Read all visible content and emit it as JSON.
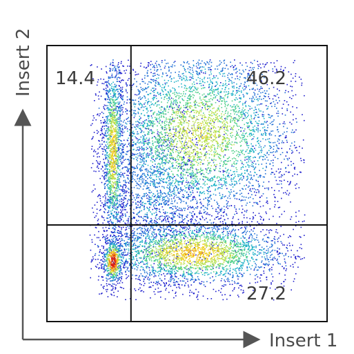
{
  "chart_data": {
    "type": "scatter",
    "title": "",
    "xlabel": "Insert 1",
    "ylabel": "Insert 2",
    "xlim": [
      0,
      100
    ],
    "ylim": [
      0,
      100
    ],
    "grid": false,
    "gates": {
      "x": 30,
      "y": 35
    },
    "quadrants": [
      {
        "name": "upper-left",
        "value": "14.4"
      },
      {
        "name": "upper-right",
        "value": "46.2"
      },
      {
        "name": "lower-right",
        "value": "27.2"
      }
    ],
    "colormap": [
      "#1a1acc",
      "#1f6fd6",
      "#20b2c8",
      "#4fd08a",
      "#b8e04a",
      "#f0d020",
      "#f08a18",
      "#e02010"
    ],
    "clusters": [
      {
        "label": "lower-left",
        "cx": 23.5,
        "cy": 22,
        "sx": 1.8,
        "sy": 4,
        "n": 520,
        "peak": 1.0
      },
      {
        "label": "left-column",
        "cx": 23.5,
        "cy": 62,
        "sx": 1.8,
        "sy": 18,
        "n": 1300,
        "peak": 0.7
      },
      {
        "label": "lower-right",
        "cx": 52,
        "cy": 25,
        "sx": 17,
        "sy": 6,
        "n": 2600,
        "peak": 0.72
      },
      {
        "label": "upper-right",
        "cx": 54,
        "cy": 68,
        "sx": 18,
        "sy": 17,
        "n": 4400,
        "peak": 0.6
      },
      {
        "label": "bridge",
        "cx": 38,
        "cy": 45,
        "sx": 10,
        "sy": 18,
        "n": 1300,
        "peak": 0.25
      },
      {
        "label": "sparse",
        "cx": 55,
        "cy": 55,
        "sx": 22,
        "sy": 25,
        "n": 500,
        "peak": 0.1
      }
    ]
  }
}
